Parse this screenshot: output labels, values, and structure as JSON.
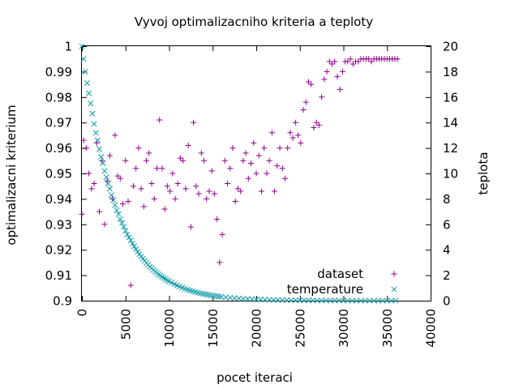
{
  "chart_data": {
    "type": "scatter",
    "title": "Vyvoj optimalizacniho kriteria a teploty",
    "xlabel": "pocet iteraci",
    "ylabel": "optimalizacni kriterium",
    "y2label": "teplota",
    "xlim": [
      0,
      40000
    ],
    "ylim": [
      0.9,
      1.0
    ],
    "y2lim": [
      0,
      20
    ],
    "x_ticks": [
      "0",
      "5000",
      "10000",
      "15000",
      "20000",
      "25000",
      "30000",
      "35000",
      "40000"
    ],
    "y_ticks": [
      "0.9",
      "0.91",
      "0.92",
      "0.93",
      "0.94",
      "0.95",
      "0.96",
      "0.97",
      "0.98",
      "0.99",
      "1"
    ],
    "y2_ticks": [
      "0",
      "2",
      "4",
      "6",
      "8",
      "10",
      "12",
      "14",
      "16",
      "18",
      "20"
    ],
    "grid": false,
    "legend_position": "bottom-right",
    "colors": {
      "dataset": "#94008f",
      "temperature": "#0b9aa5"
    },
    "series": [
      {
        "name": "dataset",
        "marker": "plus",
        "axis": "y",
        "x": [
          0,
          200,
          500,
          800,
          1100,
          1400,
          1700,
          2000,
          2300,
          2600,
          2900,
          3200,
          3500,
          3800,
          4100,
          4400,
          4700,
          5000,
          5300,
          5600,
          5900,
          6200,
          6500,
          6800,
          7100,
          7400,
          7700,
          8000,
          8300,
          8600,
          8900,
          9200,
          9500,
          9800,
          10100,
          10400,
          10700,
          11000,
          11300,
          11600,
          11900,
          12200,
          12500,
          12800,
          13100,
          13400,
          13700,
          14000,
          14300,
          14600,
          14900,
          15200,
          15500,
          15800,
          16100,
          16400,
          16700,
          17000,
          17300,
          17600,
          17900,
          18200,
          18500,
          18800,
          19100,
          19400,
          19700,
          20000,
          20300,
          20600,
          20900,
          21200,
          21500,
          21800,
          22100,
          22400,
          22700,
          23000,
          23300,
          23600,
          23900,
          24200,
          24500,
          24800,
          25100,
          25400,
          25700,
          26000,
          26300,
          26600,
          26900,
          27200,
          27500,
          27800,
          28100,
          28400,
          28700,
          29000,
          29300,
          29600,
          29900,
          30200,
          30500,
          30800,
          31100,
          31400,
          31700,
          32000,
          32300,
          32600,
          32900,
          33200,
          33500,
          33800,
          34100,
          34400,
          34700,
          35000,
          35300,
          35600,
          35900,
          36200
        ],
        "y": [
          0.934,
          0.963,
          0.96,
          0.95,
          0.944,
          0.946,
          0.962,
          0.935,
          0.955,
          0.93,
          0.947,
          0.957,
          0.94,
          0.965,
          0.949,
          0.948,
          0.938,
          0.955,
          0.939,
          0.906,
          0.945,
          0.952,
          0.96,
          0.944,
          0.937,
          0.955,
          0.958,
          0.946,
          0.94,
          0.952,
          0.971,
          0.952,
          0.936,
          0.945,
          0.943,
          0.95,
          0.94,
          0.946,
          0.956,
          0.955,
          0.944,
          0.961,
          0.929,
          0.97,
          0.945,
          0.942,
          0.958,
          0.955,
          0.94,
          0.943,
          0.951,
          0.942,
          0.932,
          0.915,
          0.926,
          0.955,
          0.946,
          0.952,
          0.96,
          0.939,
          0.944,
          0.943,
          0.955,
          0.958,
          0.948,
          0.954,
          0.962,
          0.95,
          0.957,
          0.943,
          0.96,
          0.95,
          0.955,
          0.966,
          0.943,
          0.953,
          0.96,
          0.952,
          0.948,
          0.96,
          0.966,
          0.964,
          0.97,
          0.965,
          0.962,
          0.975,
          0.978,
          0.986,
          0.985,
          0.968,
          0.97,
          0.969,
          0.98,
          0.987,
          0.99,
          0.994,
          0.993,
          0.994,
          0.988,
          0.983,
          0.99,
          0.994,
          0.994,
          0.995,
          0.993,
          0.994,
          0.994,
          0.995,
          0.995,
          0.995,
          0.995,
          0.994,
          0.995,
          0.995,
          0.995,
          0.995,
          0.995,
          0.995,
          0.995,
          0.995,
          0.995,
          0.995
        ]
      },
      {
        "name": "temperature",
        "marker": "cross",
        "axis": "y2",
        "x": [
          0,
          200,
          400,
          600,
          800,
          1000,
          1200,
          1400,
          1600,
          1800,
          2000,
          2200,
          2400,
          2600,
          2800,
          3000,
          3200,
          3400,
          3600,
          3800,
          4000,
          4200,
          4400,
          4600,
          4800,
          5000,
          5200,
          5400,
          5600,
          5800,
          6000,
          6200,
          6400,
          6600,
          6800,
          7000,
          7200,
          7400,
          7600,
          7800,
          8000,
          8200,
          8400,
          8600,
          8800,
          9000,
          9200,
          9400,
          9600,
          9800,
          10000,
          10300,
          10600,
          10900,
          11200,
          11500,
          11800,
          12100,
          12400,
          12700,
          13000,
          13300,
          13600,
          13900,
          14200,
          14500,
          14800,
          15100,
          15400,
          15700,
          16000,
          16500,
          17000,
          17500,
          18000,
          18500,
          19000,
          19500,
          20000,
          20500,
          21000,
          21500,
          22000,
          22500,
          23000,
          23500,
          24000,
          24500,
          25000,
          25500,
          26000,
          26500,
          27000,
          27500,
          28000,
          28500,
          29000,
          29500,
          30000,
          30500,
          31000,
          31500,
          32000,
          32500,
          33000,
          33500,
          34000,
          34500,
          35000,
          35500,
          36000
        ],
        "y": [
          20.0,
          19.0,
          18.0,
          17.1,
          16.3,
          15.5,
          14.7,
          13.9,
          13.2,
          12.6,
          11.9,
          11.3,
          10.8,
          10.2,
          9.7,
          9.2,
          8.8,
          8.3,
          7.9,
          7.5,
          7.1,
          6.8,
          6.4,
          6.1,
          5.8,
          5.5,
          5.2,
          4.98,
          4.73,
          4.49,
          4.27,
          4.05,
          3.85,
          3.66,
          3.47,
          3.3,
          3.13,
          2.97,
          2.83,
          2.68,
          2.55,
          2.42,
          2.3,
          2.18,
          2.07,
          1.97,
          1.87,
          1.78,
          1.69,
          1.6,
          1.52,
          1.41,
          1.3,
          1.2,
          1.11,
          1.02,
          0.94,
          0.87,
          0.8,
          0.74,
          0.68,
          0.63,
          0.58,
          0.54,
          0.5,
          0.46,
          0.42,
          0.39,
          0.36,
          0.33,
          0.31,
          0.27,
          0.23,
          0.2,
          0.18,
          0.15,
          0.13,
          0.12,
          0.1,
          0.09,
          0.08,
          0.07,
          0.06,
          0.05,
          0.04,
          0.04,
          0.03,
          0.03,
          0.02,
          0.02,
          0.02,
          0.02,
          0.01,
          0.01,
          0.01,
          0.01,
          0.01,
          0.01,
          0.0,
          0.0,
          0.0,
          0.0,
          0.0,
          0.0,
          0.0,
          0.0,
          0.0,
          0.0,
          0.0,
          0.0,
          0.0
        ]
      }
    ]
  }
}
